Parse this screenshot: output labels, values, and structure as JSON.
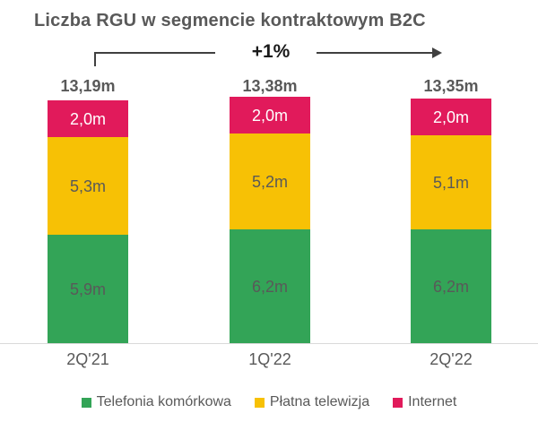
{
  "title": "Liczba RGU w segmencie kontraktowym B2C",
  "annotation": {
    "label": "+1%"
  },
  "colors": {
    "mobile_green": "#33A457",
    "tv_yellow": "#F7C105",
    "internet_pink": "#E11A5B",
    "text_gray": "#595959",
    "axis_gray": "#D9D9D9",
    "annotation_line": "#404040"
  },
  "chart_data": {
    "type": "bar",
    "stacked": true,
    "title": "Liczba RGU w segmencie kontraktowym B2C",
    "unit": "m",
    "categories": [
      "2Q'21",
      "1Q'22",
      "2Q'22"
    ],
    "series": [
      {
        "name": "Telefonia komórkowa",
        "color": "#33A457",
        "label_color": "#595959",
        "values": [
          5.9,
          6.2,
          6.2
        ],
        "value_labels": [
          "5,9m",
          "6,2m",
          "6,2m"
        ]
      },
      {
        "name": "Płatna telewizja",
        "color": "#F7C105",
        "label_color": "#595959",
        "values": [
          5.3,
          5.2,
          5.1
        ],
        "value_labels": [
          "5,3m",
          "5,2m",
          "5,1m"
        ]
      },
      {
        "name": "Internet",
        "color": "#E11A5B",
        "label_color": "#FFFFFF",
        "values": [
          2.0,
          2.0,
          2.0
        ],
        "value_labels": [
          "2,0m",
          "2,0m",
          "2,0m"
        ]
      }
    ],
    "totals": {
      "values": [
        13.19,
        13.38,
        13.35
      ],
      "labels": [
        "13,19m",
        "13,38m",
        "13,35m"
      ]
    },
    "annotations": [
      {
        "text": "+1%",
        "from_category": "2Q'21",
        "to_category": "2Q'22"
      }
    ],
    "ylim": [
      0,
      14
    ],
    "grid": false,
    "legend_position": "bottom"
  }
}
